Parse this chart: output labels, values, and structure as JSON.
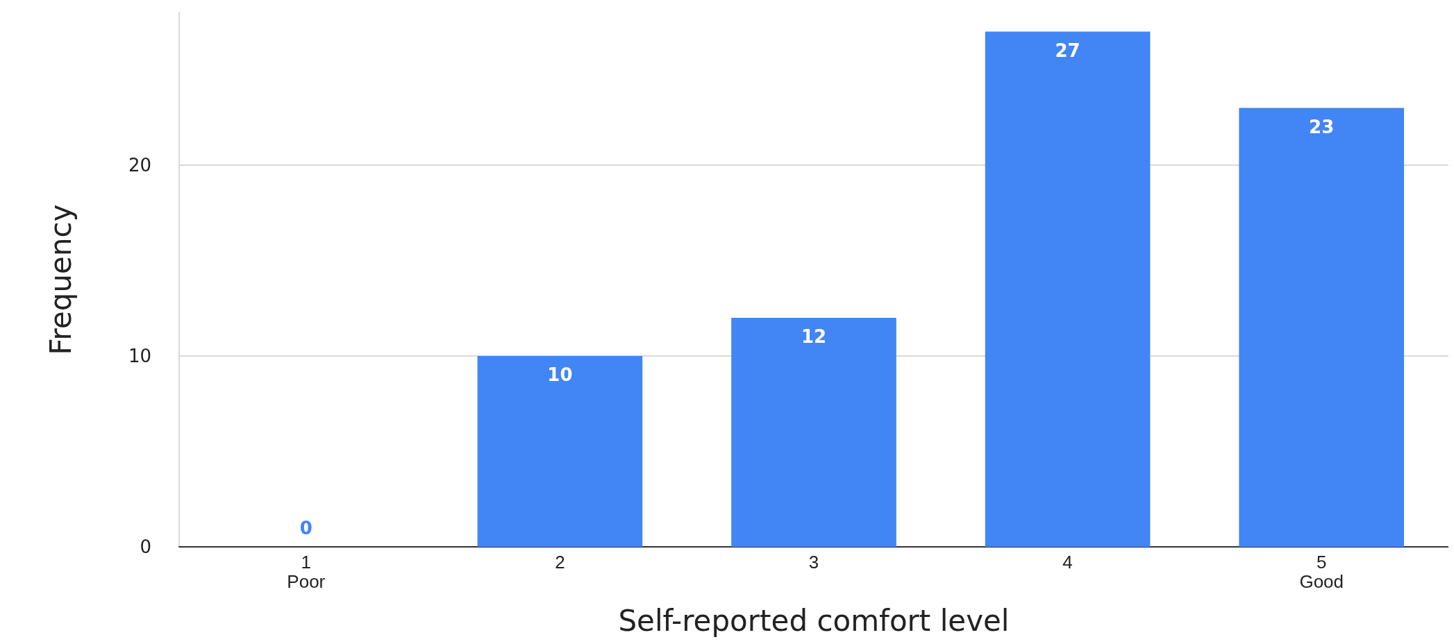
{
  "chart_data": {
    "type": "bar",
    "xlabel": "Self-reported comfort level",
    "ylabel": "Frequency",
    "categories": [
      "1\nPoor",
      "2",
      "3",
      "4",
      "5\nGood"
    ],
    "values": [
      0,
      10,
      12,
      27,
      23
    ],
    "color": "#4285f4",
    "ylim": [
      0,
      28
    ],
    "yticks": [
      0,
      10,
      20
    ],
    "grid": "y",
    "data_labels": true
  }
}
